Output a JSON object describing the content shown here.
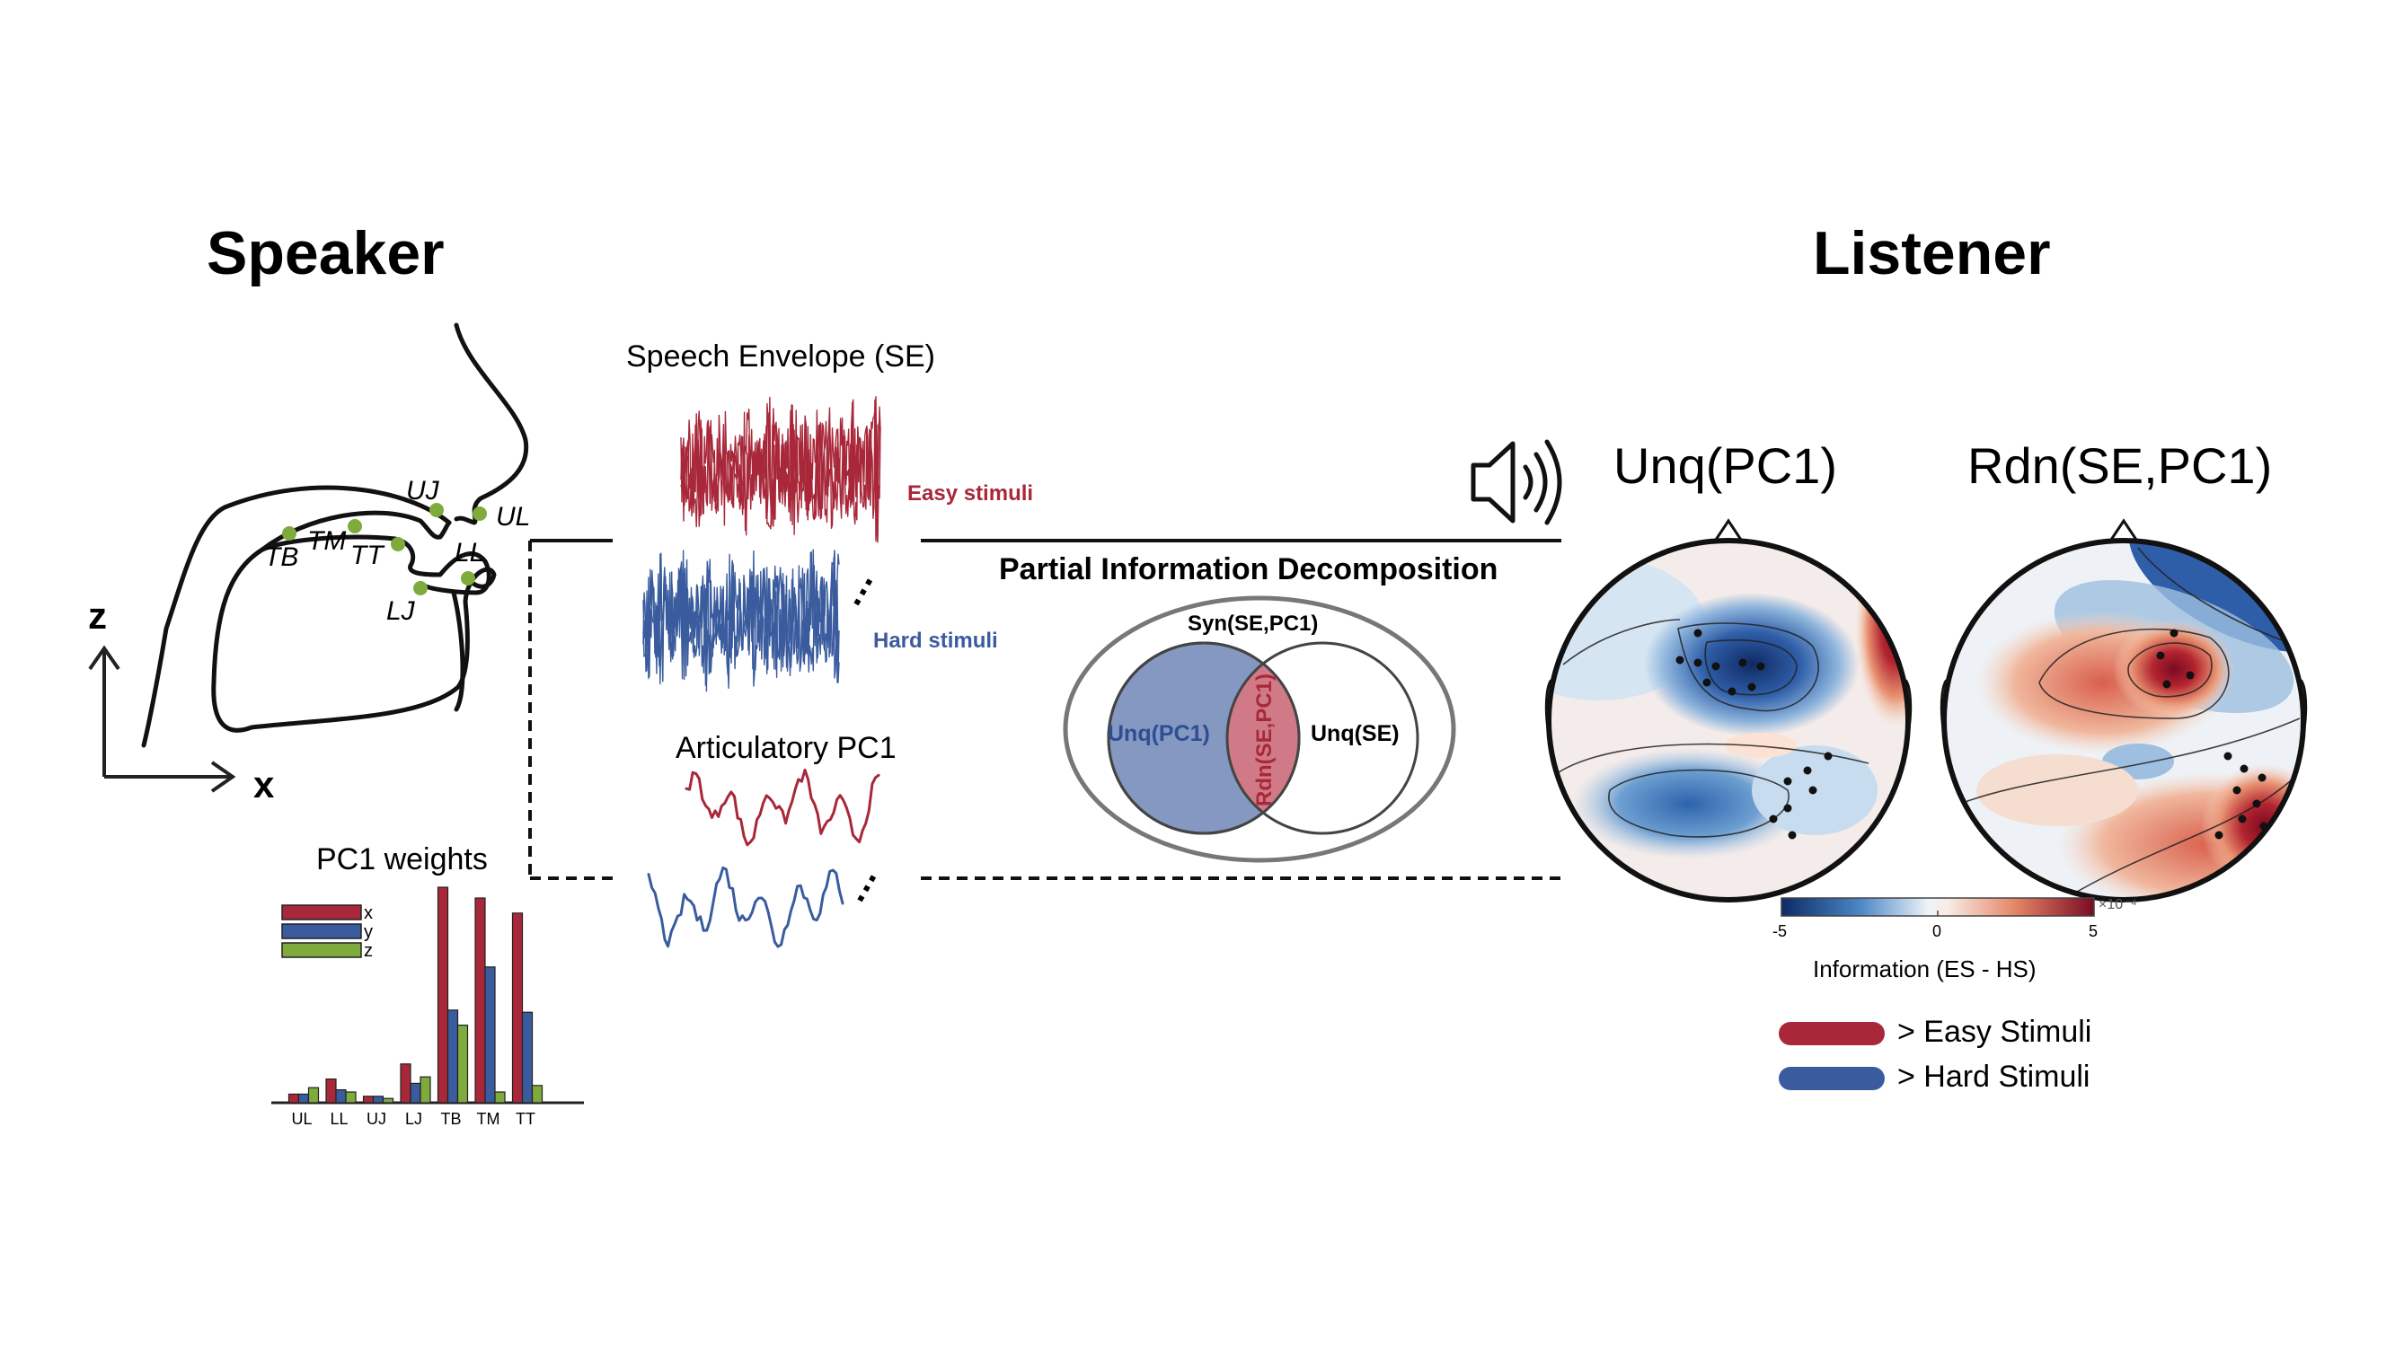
{
  "speaker": {
    "title": "Speaker",
    "axis_z": "z",
    "axis_x": "x",
    "articulators": [
      "UJ",
      "UL",
      "TB",
      "TM",
      "TT",
      "LL",
      "LJ"
    ]
  },
  "listener": {
    "title": "Listener",
    "map1_title": "Unq(PC1)",
    "map2_title": "Rdn(SE,PC1)"
  },
  "signals": {
    "se_title": "Speech Envelope (SE)",
    "easy_label": "Easy stimuli",
    "hard_label": "Hard stimuli",
    "pc1_title": "Articulatory PC1",
    "dots": "…"
  },
  "pid": {
    "title": "Partial Information Decomposition",
    "syn": "Syn(SE,PC1)",
    "unq_pc1": "Unq(PC1)",
    "unq_se": "Unq(SE)",
    "rdn": "Rdn(SE,PC1)"
  },
  "colorbar": {
    "min_label": "-5",
    "mid_label": "0",
    "max_label": "5",
    "exponent": "×10⁻⁴",
    "title": "Information (ES - HS)"
  },
  "legend": {
    "easy": "> Easy Stimuli",
    "hard": "> Hard Stimuli"
  },
  "colors": {
    "red": "#a8283a",
    "blue": "#3a5c9e",
    "green": "#7faa3c"
  },
  "chart_data": {
    "type": "bar",
    "title": "PC1 weights",
    "categories": [
      "UL",
      "LL",
      "UJ",
      "LJ",
      "TB",
      "TM",
      "TT"
    ],
    "series": [
      {
        "name": "x",
        "values": [
          0.04,
          0.11,
          0.03,
          0.18,
          1.0,
          0.95,
          0.88
        ]
      },
      {
        "name": "y",
        "values": [
          0.04,
          0.06,
          0.03,
          0.09,
          0.43,
          0.63,
          0.42
        ]
      },
      {
        "name": "z",
        "values": [
          0.07,
          0.05,
          0.02,
          0.12,
          0.36,
          0.05,
          0.08
        ]
      }
    ],
    "ylim": [
      0,
      1.0
    ]
  }
}
